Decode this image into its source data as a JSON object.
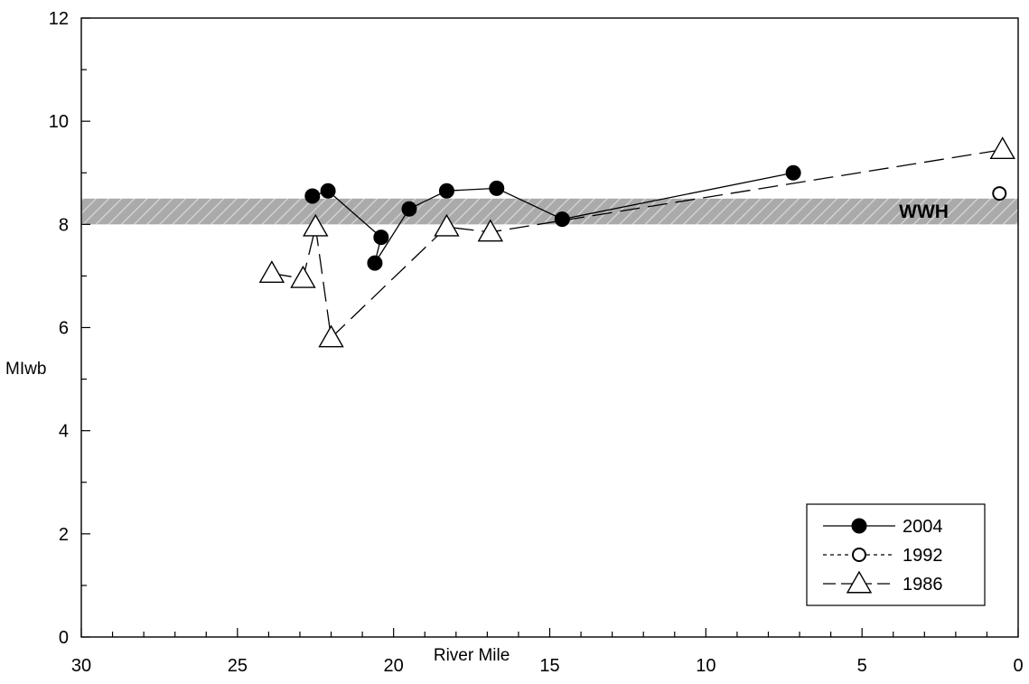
{
  "chart_data": {
    "type": "line",
    "xlabel": "River Mile",
    "ylabel": "MIwb",
    "xlim": [
      30,
      0
    ],
    "ylim": [
      0,
      12
    ],
    "x_ticks": [
      "30",
      "25",
      "20",
      "15",
      "10",
      "5",
      "0"
    ],
    "y_ticks": [
      "0",
      "2",
      "4",
      "6",
      "8",
      "10",
      "12"
    ],
    "x_reversed": true,
    "grid": false,
    "legend_position": "bottom-right",
    "reference_band": {
      "label": "WWH",
      "from": 8.0,
      "to": 8.5,
      "color": "#aaaaaa"
    },
    "series": [
      {
        "name": "2004",
        "marker": "filled-circle",
        "line": "solid",
        "points": [
          {
            "x": 22.6,
            "y": 8.55
          },
          {
            "x": 22.1,
            "y": 8.65
          },
          {
            "x": 20.4,
            "y": 7.75
          },
          {
            "x": 20.6,
            "y": 7.25
          },
          {
            "x": 19.5,
            "y": 8.3
          },
          {
            "x": 18.3,
            "y": 8.65
          },
          {
            "x": 16.7,
            "y": 8.7
          },
          {
            "x": 14.6,
            "y": 8.1
          },
          {
            "x": 7.2,
            "y": 9.0
          }
        ]
      },
      {
        "name": "1992",
        "marker": "open-circle",
        "line": "dotted",
        "points": [
          {
            "x": 0.6,
            "y": 8.6
          }
        ]
      },
      {
        "name": "1986",
        "marker": "open-triangle",
        "line": "dashed",
        "points": [
          {
            "x": 23.9,
            "y": 7.05
          },
          {
            "x": 22.9,
            "y": 6.95
          },
          {
            "x": 22.5,
            "y": 7.95
          },
          {
            "x": 22.0,
            "y": 5.8
          },
          {
            "x": 18.3,
            "y": 7.95
          },
          {
            "x": 16.9,
            "y": 7.85
          },
          {
            "x": 0.5,
            "y": 9.45
          }
        ]
      }
    ]
  }
}
